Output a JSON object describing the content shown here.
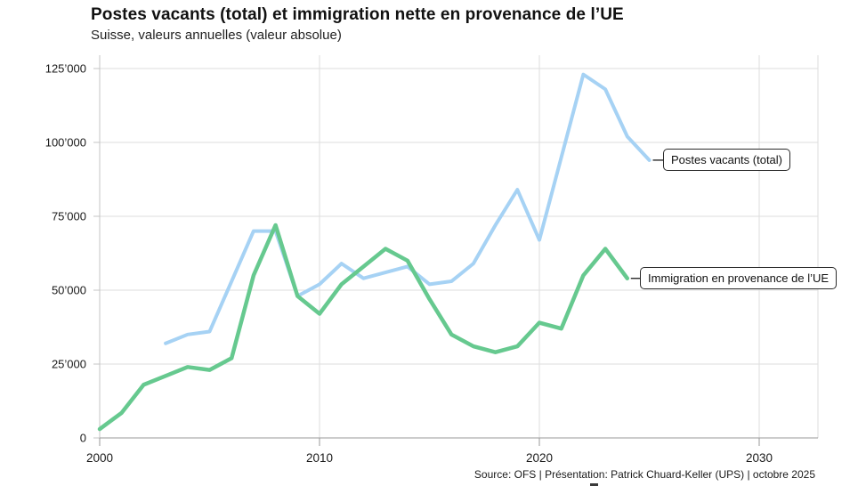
{
  "header": {
    "title": "Postes vacants (total) et immigration nette en provenance de l’UE",
    "subtitle": "Suisse, valeurs annuelles (valeur absolue)"
  },
  "chart_data": {
    "type": "line",
    "title": "Postes vacants (total) et immigration nette en provenance de l’UE",
    "subtitle": "Suisse, valeurs annuelles (valeur absolue)",
    "xlabel": "",
    "ylabel": "",
    "xlim": [
      2000,
      2032.7
    ],
    "ylim": [
      0,
      125000
    ],
    "grid": true,
    "x_ticks": [
      "2000",
      "2010",
      "2020",
      "2030"
    ],
    "x_tick_years": [
      2000,
      2010,
      2020,
      2030
    ],
    "y_ticks": [
      "0",
      "25’000",
      "50’000",
      "75’000",
      "100’000",
      "125’000"
    ],
    "y_tick_values": [
      0,
      25000,
      50000,
      75000,
      100000,
      125000
    ],
    "series": [
      {
        "name": "Postes vacants (total)",
        "color": "#A6D2F4",
        "years": [
          2003,
          2004,
          2005,
          2006,
          2007,
          2008,
          2009,
          2010,
          2011,
          2012,
          2013,
          2014,
          2015,
          2016,
          2017,
          2018,
          2019,
          2020,
          2021,
          2022,
          2023,
          2024,
          2025
        ],
        "values": [
          32000,
          35000,
          36000,
          53000,
          70000,
          70000,
          48000,
          52000,
          59000,
          54000,
          56000,
          58000,
          52000,
          53000,
          59000,
          72000,
          84000,
          67000,
          95000,
          123000,
          118000,
          102000,
          94000
        ]
      },
      {
        "name": "Immigration en provenance de l’UE",
        "color": "#66C98F",
        "years": [
          2000,
          2001,
          2002,
          2003,
          2004,
          2005,
          2006,
          2007,
          2008,
          2009,
          2010,
          2011,
          2012,
          2013,
          2014,
          2015,
          2016,
          2017,
          2018,
          2019,
          2020,
          2021,
          2022,
          2023,
          2024
        ],
        "values": [
          3000,
          8500,
          18000,
          21000,
          24000,
          23000,
          27000,
          55000,
          72000,
          48000,
          42000,
          52000,
          58000,
          64000,
          60000,
          47000,
          35000,
          31000,
          29000,
          31000,
          39000,
          37000,
          55000,
          64000,
          54000
        ]
      }
    ],
    "legend_position": "line-end-callouts"
  },
  "callouts": [
    {
      "label": "Postes vacants (total)"
    },
    {
      "label": "Immigration en provenance de l’UE"
    }
  ],
  "footer": {
    "source": "Source: OFS | Présentation: Patrick Chuard-Keller (UPS) | octobre 2025"
  },
  "colors": {
    "vacancies_line": "#A6D2F4",
    "immigration_line": "#66C98F",
    "gridline": "#dedede",
    "axis": "#999999",
    "text": "#1a1a1a"
  }
}
